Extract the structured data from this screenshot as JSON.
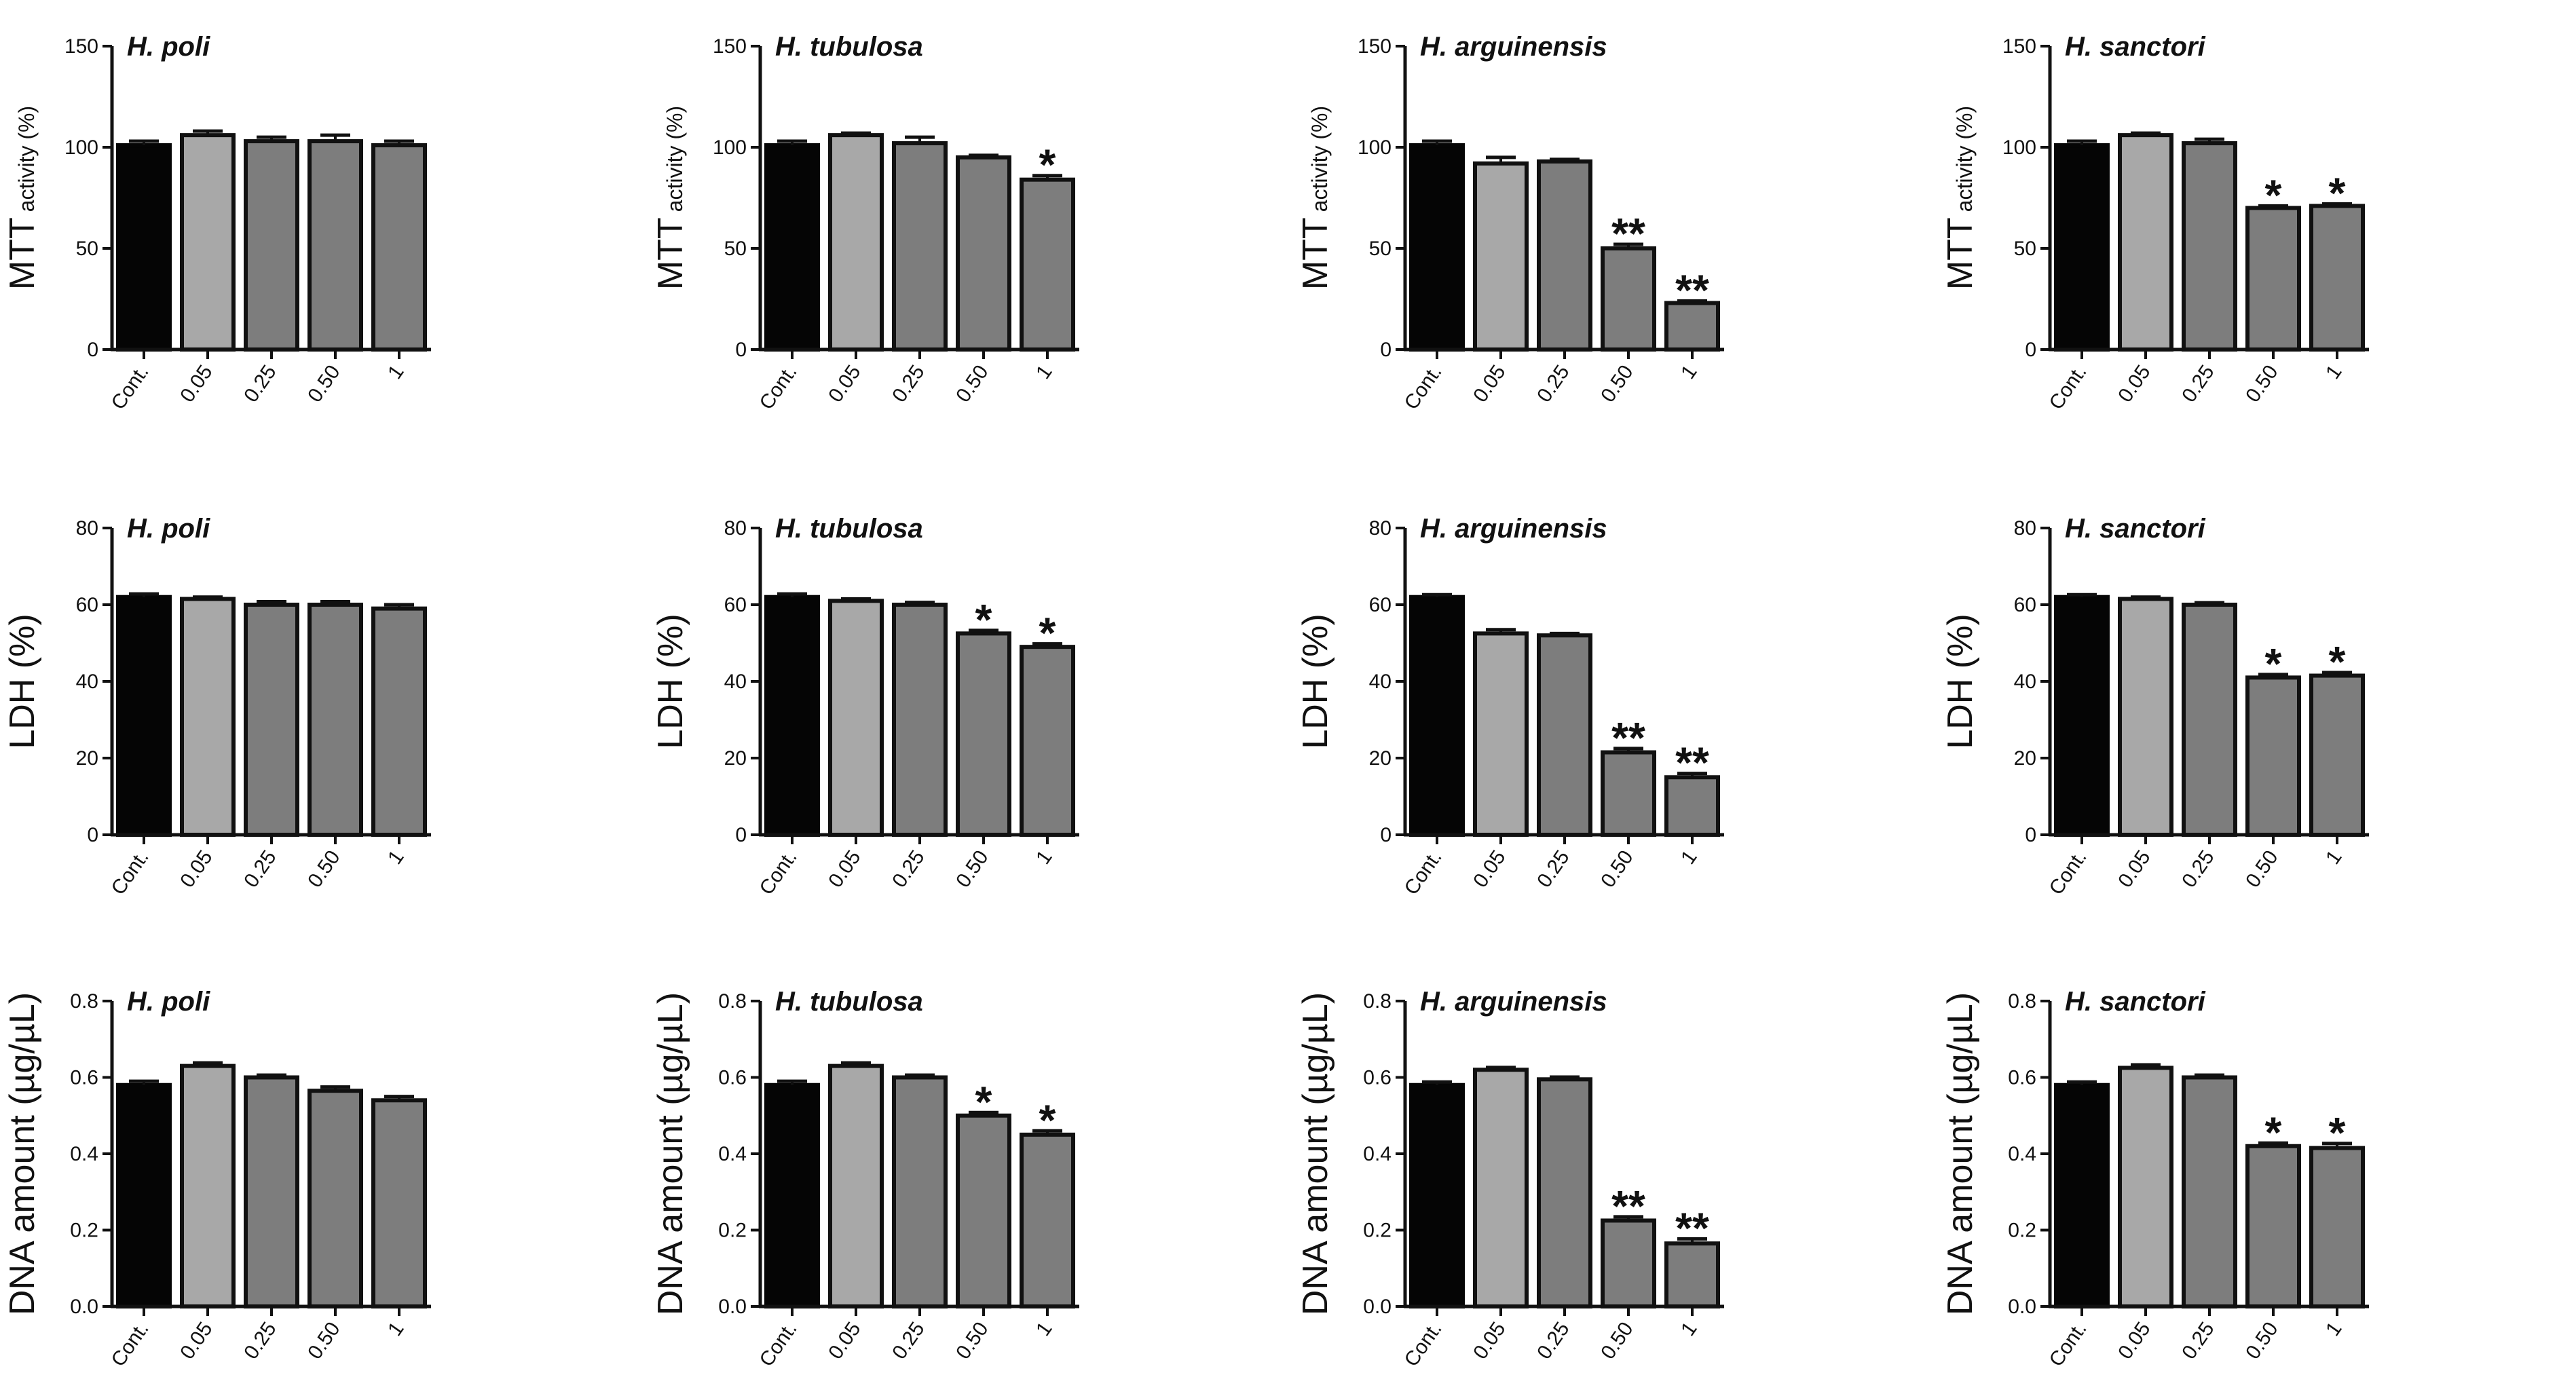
{
  "chart_data": [
    {
      "type": "bar",
      "title": "H. poli",
      "ylabel": "MTT",
      "ylabel_sub": "activity (%)",
      "ylim": [
        0,
        150
      ],
      "yticks": [
        0,
        50,
        100,
        150
      ],
      "categories": [
        "Cont.",
        "0.05",
        "0.25",
        "0.50",
        "1"
      ],
      "values": [
        101,
        106,
        103,
        103,
        101
      ],
      "errors": [
        2,
        2,
        2,
        3,
        2
      ],
      "annotations": [
        "",
        "",
        "",
        "",
        ""
      ]
    },
    {
      "type": "bar",
      "title": "H. tubulosa",
      "ylabel": "MTT",
      "ylabel_sub": "activity (%)",
      "ylim": [
        0,
        150
      ],
      "yticks": [
        0,
        50,
        100,
        150
      ],
      "categories": [
        "Cont.",
        "0.05",
        "0.25",
        "0.50",
        "1"
      ],
      "values": [
        101,
        106,
        102,
        95,
        84
      ],
      "errors": [
        2,
        1,
        3,
        1,
        2
      ],
      "annotations": [
        "",
        "",
        "",
        "",
        "*"
      ]
    },
    {
      "type": "bar",
      "title": "H. arguinensis",
      "ylabel": "MTT",
      "ylabel_sub": "activity (%)",
      "ylim": [
        0,
        150
      ],
      "yticks": [
        0,
        50,
        100,
        150
      ],
      "categories": [
        "Cont.",
        "0.05",
        "0.25",
        "0.50",
        "1"
      ],
      "values": [
        101,
        92,
        93,
        50,
        23
      ],
      "errors": [
        2,
        3,
        1,
        2,
        1
      ],
      "annotations": [
        "",
        "",
        "",
        "**",
        "**"
      ]
    },
    {
      "type": "bar",
      "title": "H. sanctori",
      "ylabel": "MTT",
      "ylabel_sub": "activity (%)",
      "ylim": [
        0,
        150
      ],
      "yticks": [
        0,
        50,
        100,
        150
      ],
      "categories": [
        "Cont.",
        "0.05",
        "0.25",
        "0.50",
        "1"
      ],
      "values": [
        101,
        106,
        102,
        70,
        71
      ],
      "errors": [
        2,
        1,
        2,
        1,
        1
      ],
      "annotations": [
        "",
        "",
        "",
        "*",
        "*"
      ]
    },
    {
      "type": "bar",
      "title": "H. poli",
      "ylabel": "LDH (%)",
      "ylabel_sub": "",
      "ylim": [
        0,
        80
      ],
      "yticks": [
        0,
        20,
        40,
        60,
        80
      ],
      "categories": [
        "Cont.",
        "0.05",
        "0.25",
        "0.50",
        "1"
      ],
      "values": [
        62,
        61.5,
        60,
        60,
        59
      ],
      "errors": [
        0.8,
        0.5,
        0.8,
        0.8,
        1
      ],
      "annotations": [
        "",
        "",
        "",
        "",
        ""
      ]
    },
    {
      "type": "bar",
      "title": "H. tubulosa",
      "ylabel": "LDH (%)",
      "ylabel_sub": "",
      "ylim": [
        0,
        80
      ],
      "yticks": [
        0,
        20,
        40,
        60,
        80
      ],
      "categories": [
        "Cont.",
        "0.05",
        "0.25",
        "0.50",
        "1"
      ],
      "values": [
        62,
        61,
        60,
        52.5,
        49
      ],
      "errors": [
        0.8,
        0.5,
        0.6,
        0.8,
        0.8
      ],
      "annotations": [
        "",
        "",
        "",
        "*",
        "*"
      ]
    },
    {
      "type": "bar",
      "title": "H. arguinensis",
      "ylabel": "LDH (%)",
      "ylabel_sub": "",
      "ylim": [
        0,
        80
      ],
      "yticks": [
        0,
        20,
        40,
        60,
        80
      ],
      "categories": [
        "Cont.",
        "0.05",
        "0.25",
        "0.50",
        "1"
      ],
      "values": [
        62,
        52.5,
        52,
        21.5,
        15
      ],
      "errors": [
        0.6,
        1,
        0.5,
        1,
        1
      ],
      "annotations": [
        "",
        "",
        "",
        "**",
        "**"
      ]
    },
    {
      "type": "bar",
      "title": "H. sanctori",
      "ylabel": "LDH (%)",
      "ylabel_sub": "",
      "ylim": [
        0,
        80
      ],
      "yticks": [
        0,
        20,
        40,
        60,
        80
      ],
      "categories": [
        "Cont.",
        "0.05",
        "0.25",
        "0.50",
        "1"
      ],
      "values": [
        62,
        61.5,
        60,
        41,
        41.5
      ],
      "errors": [
        0.6,
        0.5,
        0.5,
        0.8,
        0.8
      ],
      "annotations": [
        "",
        "",
        "",
        "*",
        "*"
      ]
    },
    {
      "type": "bar",
      "title": "H. poli",
      "ylabel": "DNA amount (µg/µL)",
      "ylabel_sub": "",
      "ylim": [
        0,
        0.8
      ],
      "yticks": [
        "0.0",
        "0.2",
        "0.4",
        "0.6",
        "0.8"
      ],
      "categories": [
        "Cont.",
        "0.05",
        "0.25",
        "0.50",
        "1"
      ],
      "values": [
        0.58,
        0.63,
        0.6,
        0.565,
        0.54
      ],
      "errors": [
        0.01,
        0.008,
        0.006,
        0.01,
        0.01
      ],
      "annotations": [
        "",
        "",
        "",
        "",
        ""
      ]
    },
    {
      "type": "bar",
      "title": "H. tubulosa",
      "ylabel": "DNA amount (µg/µL)",
      "ylabel_sub": "",
      "ylim": [
        0,
        0.8
      ],
      "yticks": [
        "0.0",
        "0.2",
        "0.4",
        "0.6",
        "0.8"
      ],
      "categories": [
        "Cont.",
        "0.05",
        "0.25",
        "0.50",
        "1"
      ],
      "values": [
        0.58,
        0.63,
        0.6,
        0.5,
        0.45
      ],
      "errors": [
        0.01,
        0.008,
        0.006,
        0.008,
        0.01
      ],
      "annotations": [
        "",
        "",
        "",
        "*",
        "*"
      ]
    },
    {
      "type": "bar",
      "title": "H. arguinensis",
      "ylabel": "DNA amount (µg/µL)",
      "ylabel_sub": "",
      "ylim": [
        0,
        0.8
      ],
      "yticks": [
        "0.0",
        "0.2",
        "0.4",
        "0.6",
        "0.8"
      ],
      "categories": [
        "Cont.",
        "0.05",
        "0.25",
        "0.50",
        "1"
      ],
      "values": [
        0.58,
        0.62,
        0.595,
        0.225,
        0.165
      ],
      "errors": [
        0.008,
        0.006,
        0.006,
        0.01,
        0.012
      ],
      "annotations": [
        "",
        "",
        "",
        "**",
        "**"
      ]
    },
    {
      "type": "bar",
      "title": "H. sanctori",
      "ylabel": "DNA amount (µg/µL)",
      "ylabel_sub": "",
      "ylim": [
        0,
        0.8
      ],
      "yticks": [
        "0.0",
        "0.2",
        "0.4",
        "0.6",
        "0.8"
      ],
      "categories": [
        "Cont.",
        "0.05",
        "0.25",
        "0.50",
        "1"
      ],
      "values": [
        0.58,
        0.625,
        0.6,
        0.42,
        0.415
      ],
      "errors": [
        0.008,
        0.008,
        0.006,
        0.008,
        0.012
      ],
      "annotations": [
        "",
        "",
        "",
        "*",
        "*"
      ]
    }
  ],
  "colors": {
    "control": "#050505",
    "low_dose": "#a8a8a8",
    "other_dose": "#7d7d7d",
    "bar_outline": "#111111",
    "axis": "#111111"
  }
}
